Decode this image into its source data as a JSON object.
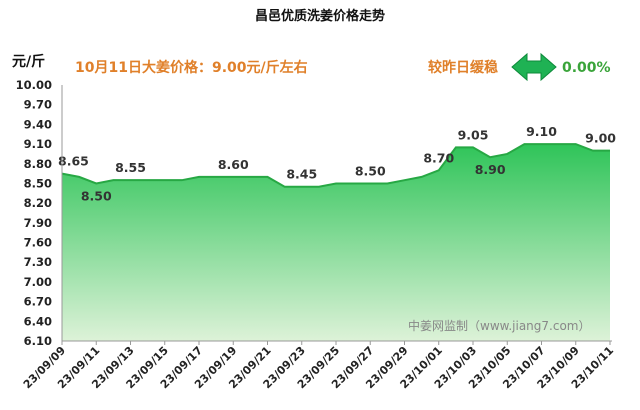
{
  "chart_data": {
    "type": "area",
    "title": "昌邑优质洗姜价格走势",
    "unit_label": "元/斤",
    "headline": "10月11日大姜价格：9.00元/斤左右",
    "trend_label": "较昨日缓稳",
    "change_pct": "0.00%",
    "watermark": "中姜网监制（www.jiang7.com）",
    "ylim": [
      6.1,
      10.0
    ],
    "yticks": [
      "10.00",
      "9.70",
      "9.40",
      "9.10",
      "8.80",
      "8.50",
      "8.20",
      "7.90",
      "7.60",
      "7.30",
      "7.00",
      "6.70",
      "6.40",
      "6.10"
    ],
    "xticks": [
      "23/09/09",
      "23/09/11",
      "23/09/13",
      "23/09/15",
      "23/09/17",
      "23/09/19",
      "23/09/21",
      "23/09/23",
      "23/09/25",
      "23/09/27",
      "23/09/29",
      "23/10/01",
      "23/10/03",
      "23/10/05",
      "23/10/07",
      "23/10/09",
      "23/10/11"
    ],
    "dates": [
      "09/09",
      "09/10",
      "09/11",
      "09/12",
      "09/13",
      "09/14",
      "09/15",
      "09/16",
      "09/17",
      "09/18",
      "09/19",
      "09/20",
      "09/21",
      "09/22",
      "09/23",
      "09/24",
      "09/25",
      "09/26",
      "09/27",
      "09/28",
      "09/29",
      "09/30",
      "10/01",
      "10/02",
      "10/03",
      "10/04",
      "10/05",
      "10/06",
      "10/07",
      "10/08",
      "10/09",
      "10/10",
      "10/11"
    ],
    "values": [
      8.65,
      8.6,
      8.5,
      8.55,
      8.55,
      8.55,
      8.55,
      8.55,
      8.6,
      8.6,
      8.6,
      8.6,
      8.6,
      8.45,
      8.45,
      8.45,
      8.5,
      8.5,
      8.5,
      8.5,
      8.55,
      8.6,
      8.7,
      9.05,
      9.05,
      8.9,
      8.95,
      9.1,
      9.1,
      9.1,
      9.1,
      9.0,
      9.0
    ],
    "data_labels": [
      {
        "index": 0,
        "text": "8.65"
      },
      {
        "index": 2,
        "text": "8.50"
      },
      {
        "index": 4,
        "text": "8.55"
      },
      {
        "index": 10,
        "text": "8.60"
      },
      {
        "index": 14,
        "text": "8.45"
      },
      {
        "index": 18,
        "text": "8.50"
      },
      {
        "index": 22,
        "text": "8.70"
      },
      {
        "index": 24,
        "text": "9.05"
      },
      {
        "index": 25,
        "text": "8.90"
      },
      {
        "index": 28,
        "text": "9.10"
      },
      {
        "index": 32,
        "text": "9.00"
      }
    ],
    "colors": {
      "line": "#27a844",
      "fill_top": "#2fc459",
      "fill_bottom": "#ddf2d8",
      "headline": "#e0802a",
      "change": "#3aa43a",
      "arrow": "#1fb254"
    }
  }
}
